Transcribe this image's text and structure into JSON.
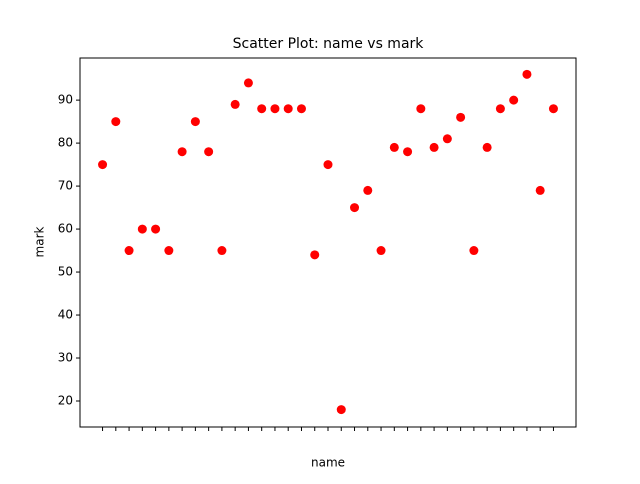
{
  "chart_data": {
    "type": "scatter",
    "title": "Scatter Plot: name vs mark",
    "x_label": "name",
    "y_label": "mark",
    "categories": [
      null,
      null,
      null,
      null,
      null,
      null,
      null,
      null,
      null,
      null,
      null,
      null,
      null,
      null,
      null,
      null,
      null,
      null,
      null,
      null,
      null,
      null,
      null,
      null,
      null,
      null,
      null,
      null,
      null,
      null,
      null,
      null,
      null,
      null,
      null
    ],
    "values": [
      75,
      85,
      55,
      60,
      60,
      55,
      78,
      85,
      78,
      55,
      89,
      94,
      88,
      88,
      88,
      88,
      54,
      75,
      18,
      65,
      69,
      55,
      79,
      78,
      88,
      79,
      81,
      86,
      55,
      79,
      88,
      90,
      96,
      69,
      88
    ],
    "color": "#ff0000",
    "ylim": [
      13.95,
      99.8
    ],
    "yticks": [
      20,
      30,
      40,
      50,
      60,
      70,
      80,
      90
    ],
    "grid": false
  }
}
